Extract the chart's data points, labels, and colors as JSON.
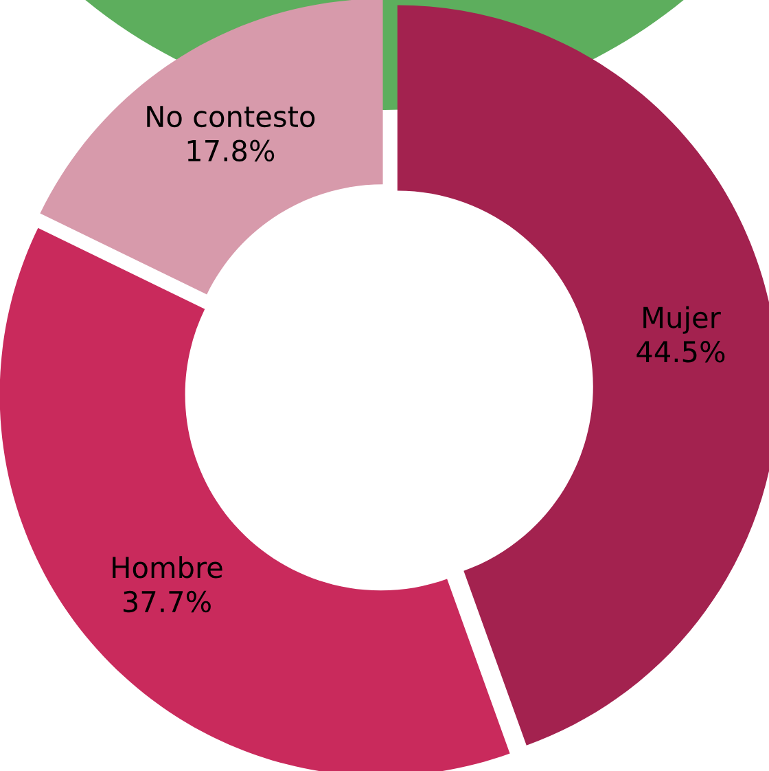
{
  "chart_data": {
    "type": "donut",
    "categories": [
      "Mujer",
      "Hombre",
      "No contesto"
    ],
    "values": [
      44.5,
      37.7,
      17.8
    ],
    "colors": [
      "#a3224f",
      "#c92a5c",
      "#d79aab"
    ],
    "value_labels": [
      "44.5%",
      "37.7%",
      "17.8%"
    ],
    "legend": false
  }
}
